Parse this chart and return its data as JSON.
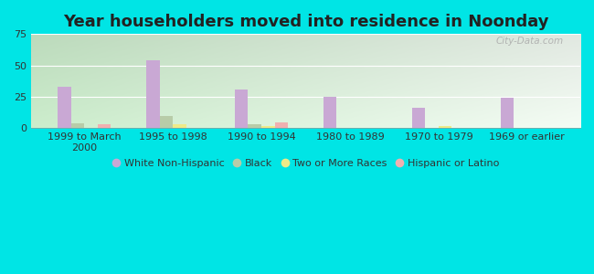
{
  "title": "Year householders moved into residence in Noonday",
  "categories": [
    "1999 to March\n2000",
    "1995 to 1998",
    "1990 to 1994",
    "1980 to 1989",
    "1970 to 1979",
    "1969 or earlier"
  ],
  "series": {
    "White Non-Hispanic": [
      33,
      54,
      31,
      25,
      16,
      24
    ],
    "Black": [
      4,
      10,
      3,
      0,
      0,
      0
    ],
    "Two or More Races": [
      0,
      3,
      2,
      0,
      2,
      0
    ],
    "Hispanic or Latino": [
      3,
      0,
      5,
      0,
      0,
      0
    ]
  },
  "colors": {
    "White Non-Hispanic": "#c9a8d4",
    "Black": "#b8cca8",
    "Two or More Races": "#eeea88",
    "Hispanic or Latino": "#f0b0b0"
  },
  "ylim": [
    0,
    75
  ],
  "yticks": [
    0,
    25,
    50,
    75
  ],
  "fig_bg": "#00e5e5",
  "plot_bg_left": "#c8e8c8",
  "plot_bg_right": "#f0f8f0",
  "watermark": "City-Data.com",
  "bar_width": 0.15,
  "title_fontsize": 13,
  "tick_fontsize": 8,
  "legend_fontsize": 8
}
